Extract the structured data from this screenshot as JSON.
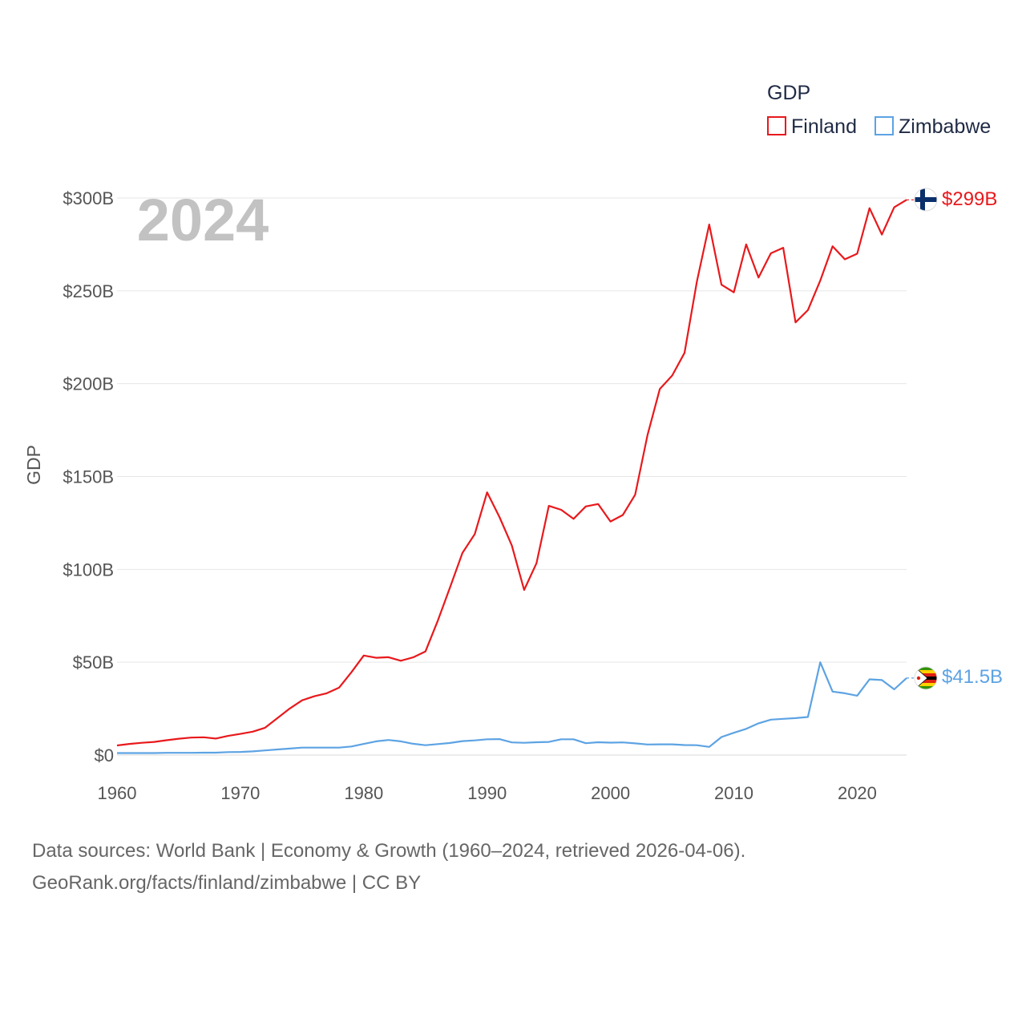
{
  "chart_data": {
    "type": "line",
    "year_watermark": "2024",
    "ylabel": "GDP",
    "ylim": [
      0,
      300
    ],
    "yticks": [
      0,
      50,
      100,
      150,
      200,
      250,
      300
    ],
    "ytick_labels": [
      "$0",
      "$50B",
      "$100B",
      "$150B",
      "$200B",
      "$250B",
      "$300B"
    ],
    "xlim": [
      1960,
      2024
    ],
    "xticks": [
      1960,
      1970,
      1980,
      1990,
      2000,
      2010,
      2020
    ],
    "xtick_labels": [
      "1960",
      "1970",
      "1980",
      "1990",
      "2000",
      "2010",
      "2020"
    ],
    "legend": {
      "title": "GDP",
      "placement": "top-right"
    },
    "x": [
      1960,
      1961,
      1962,
      1963,
      1964,
      1965,
      1966,
      1967,
      1968,
      1969,
      1970,
      1971,
      1972,
      1973,
      1974,
      1975,
      1976,
      1977,
      1978,
      1979,
      1980,
      1981,
      1982,
      1983,
      1984,
      1985,
      1986,
      1987,
      1988,
      1989,
      1990,
      1991,
      1992,
      1993,
      1994,
      1995,
      1996,
      1997,
      1998,
      1999,
      2000,
      2001,
      2002,
      2003,
      2004,
      2005,
      2006,
      2007,
      2008,
      2009,
      2010,
      2011,
      2012,
      2013,
      2014,
      2015,
      2016,
      2017,
      2018,
      2019,
      2020,
      2021,
      2022,
      2023,
      2024
    ],
    "series": [
      {
        "name": "Finland",
        "color": "#e8191c",
        "end_label": "$299B",
        "values": [
          5.2,
          6.0,
          6.6,
          7.1,
          8.0,
          8.8,
          9.4,
          9.6,
          8.9,
          10.3,
          11.4,
          12.6,
          14.7,
          19.9,
          25.1,
          29.5,
          31.7,
          33.3,
          36.3,
          44.6,
          53.6,
          52.4,
          52.7,
          50.8,
          52.6,
          55.8,
          72.4,
          90.4,
          108.8,
          119.0,
          141.5,
          128.2,
          112.9,
          88.9,
          103.3,
          134.2,
          132.1,
          127.2,
          133.9,
          135.2,
          125.8,
          129.3,
          140.2,
          172.3,
          197.2,
          204.4,
          216.6,
          255.0,
          285.7,
          253.3,
          249.2,
          275.0,
          257.2,
          270.2,
          273.2,
          233.0,
          239.6,
          255.5,
          274.0,
          267.0,
          270.0,
          294.5,
          280.3,
          295.0,
          299.0
        ]
      },
      {
        "name": "Zimbabwe",
        "color": "#5da3e3",
        "end_label": "$41.5B",
        "values": [
          1.1,
          1.1,
          1.1,
          1.1,
          1.2,
          1.2,
          1.2,
          1.3,
          1.3,
          1.6,
          1.7,
          2.0,
          2.5,
          3.0,
          3.5,
          4.0,
          4.0,
          4.0,
          4.0,
          4.6,
          6.0,
          7.4,
          8.1,
          7.4,
          6.1,
          5.3,
          5.9,
          6.5,
          7.5,
          7.9,
          8.5,
          8.6,
          6.8,
          6.6,
          6.9,
          7.1,
          8.5,
          8.5,
          6.4,
          6.9,
          6.7,
          6.8,
          6.3,
          5.7,
          5.8,
          5.8,
          5.4,
          5.3,
          4.4,
          9.7,
          12.0,
          14.1,
          17.1,
          19.1,
          19.5,
          19.9,
          20.5,
          50.0,
          34.2,
          33.3,
          32.0,
          40.8,
          40.4,
          35.4,
          41.5
        ]
      }
    ]
  },
  "footer": {
    "line1": "Data sources: World Bank | Economy & Growth (1960–2024, retrieved 2026-04-06).",
    "line2": "GeoRank.org/facts/finland/zimbabwe | CC BY"
  }
}
